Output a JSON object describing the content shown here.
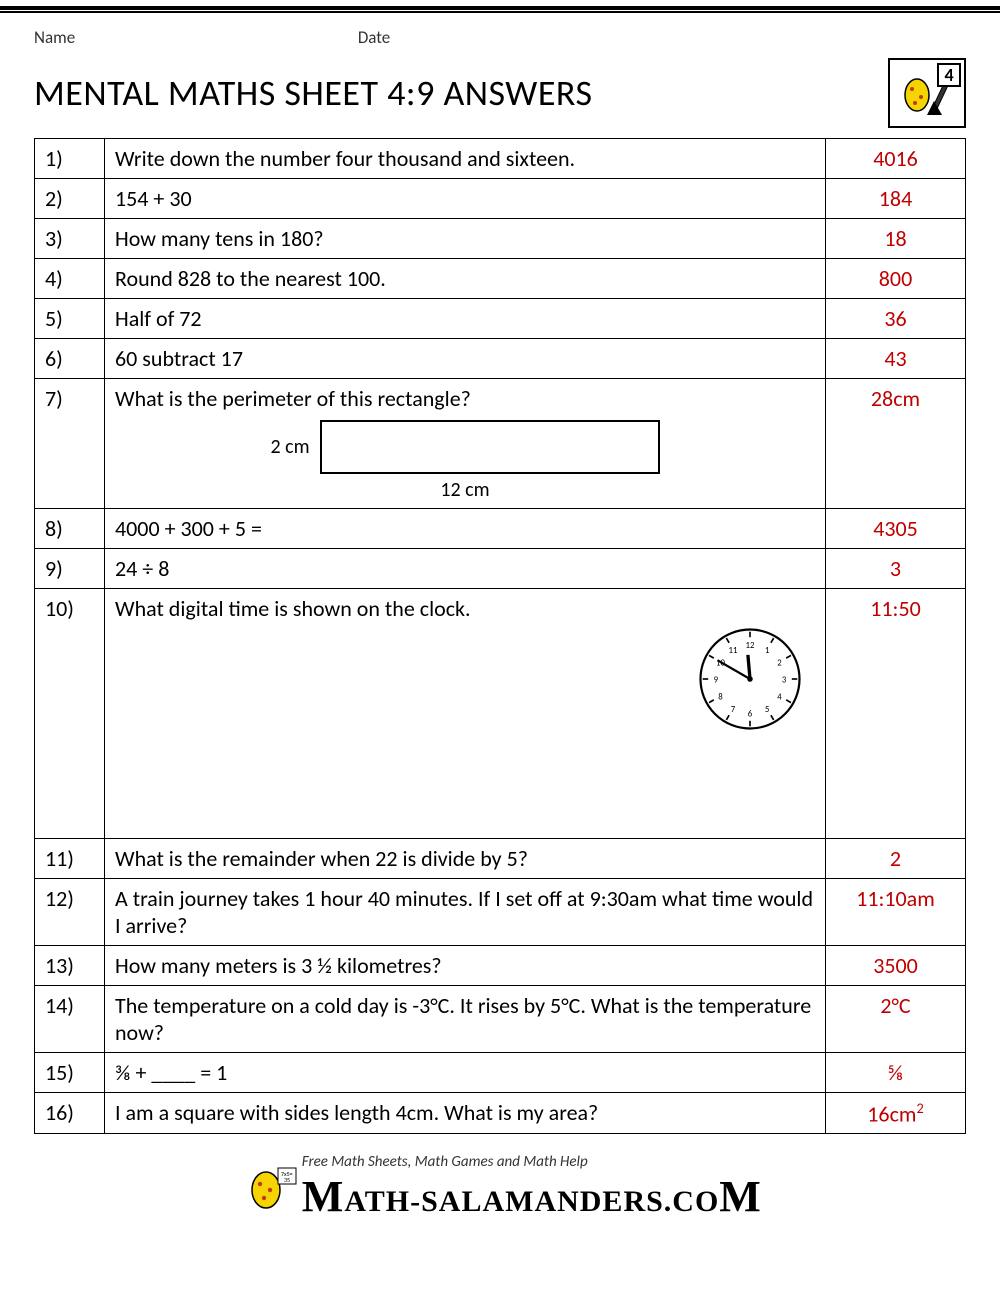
{
  "meta": {
    "name_label": "Name",
    "date_label": "Date"
  },
  "title": "MENTAL MATHS SHEET 4:9 ANSWERS",
  "badge": {
    "number": "4"
  },
  "answer_color": "#c00000",
  "rows": [
    {
      "n": "1)",
      "q": "Write down the number four thousand and sixteen.",
      "a": "4016"
    },
    {
      "n": "2)",
      "q": "154 + 30",
      "a": "184"
    },
    {
      "n": "3)",
      "q": "How many tens in 180?",
      "a": "18"
    },
    {
      "n": "4)",
      "q": "Round 828 to the nearest 100.",
      "a": "800"
    },
    {
      "n": "5)",
      "q": "Half of 72",
      "a": "36"
    },
    {
      "n": "6)",
      "q": "60 subtract 17",
      "a": "43"
    },
    {
      "n": "7)",
      "q": "What is the perimeter of this rectangle?",
      "a": "28cm",
      "rect": {
        "side": "2 cm",
        "bottom": "12 cm"
      }
    },
    {
      "n": "8)",
      "q": "4000 + 300 + 5 =",
      "a": "4305"
    },
    {
      "n": "9)",
      "q": "24 ÷ 8",
      "a": "3"
    },
    {
      "n": "10)",
      "q": "What digital time is shown on the clock.",
      "a": "11:50",
      "clock": {
        "hour": 11,
        "minute": 50
      }
    },
    {
      "n": "11)",
      "q": "What is the remainder when 22 is divide by 5?",
      "a": "2"
    },
    {
      "n": "12)",
      "q": "A train journey takes 1 hour 40 minutes. If I set off at 9:30am what time would I arrive?",
      "a": "11:10am"
    },
    {
      "n": "13)",
      "q": "How many meters is 3 ½ kilometres?",
      "a": "3500"
    },
    {
      "n": "14)",
      "q": "The temperature on a cold day is -3°C. It rises by 5°C. What is the temperature now?",
      "a": "2°C"
    },
    {
      "n": "15)",
      "q": "⅜ + ____ = 1",
      "a": "⅝"
    },
    {
      "n": "16)",
      "q": "I am a square with sides length 4cm. What is my area?",
      "a": "16cm²"
    }
  ],
  "footer": {
    "tagline": "Free Math Sheets, Math Games and Math Help",
    "brand_pre": "ATH-SALAMANDERS.CO",
    "brand_first": "M",
    "brand_last": "M"
  }
}
